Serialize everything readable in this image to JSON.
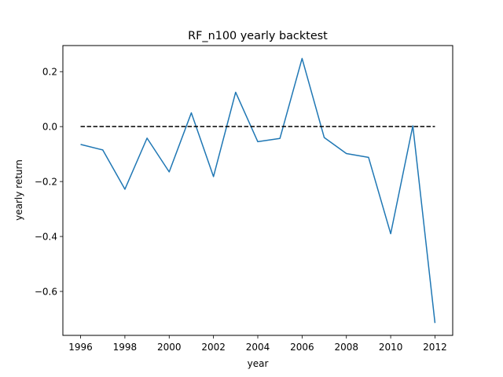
{
  "chart_data": {
    "type": "line",
    "title": "RF_n100 yearly backtest",
    "xlabel": "year",
    "ylabel": "yearly return",
    "xlim": [
      1995.2,
      2012.8
    ],
    "ylim": [
      -0.76,
      0.295
    ],
    "xticks": [
      1996,
      1998,
      2000,
      2002,
      2004,
      2006,
      2008,
      2010,
      2012
    ],
    "xtick_labels": [
      "1996",
      "1998",
      "2000",
      "2002",
      "2004",
      "2006",
      "2008",
      "2010",
      "2012"
    ],
    "yticks": [
      0.2,
      0.0,
      -0.2,
      -0.4,
      -0.6
    ],
    "ytick_labels": [
      "0.2",
      "0.0",
      "−0.2",
      "−0.4",
      "−0.6"
    ],
    "grid": false,
    "series": [
      {
        "color": "#1f77b4",
        "style": "solid",
        "x": [
          1996,
          1997,
          1998,
          1999,
          2000,
          2001,
          2002,
          2003,
          2004,
          2005,
          2006,
          2007,
          2008,
          2009,
          2010,
          2011,
          2012
        ],
        "y": [
          -0.065,
          -0.085,
          -0.228,
          -0.042,
          -0.165,
          0.05,
          -0.182,
          0.125,
          -0.055,
          -0.043,
          0.248,
          -0.04,
          -0.098,
          -0.112,
          -0.39,
          0.003,
          -0.715
        ]
      },
      {
        "color": "#000000",
        "style": "dashed",
        "x": [
          1996,
          2012
        ],
        "y": [
          0.0,
          0.0
        ]
      }
    ]
  }
}
